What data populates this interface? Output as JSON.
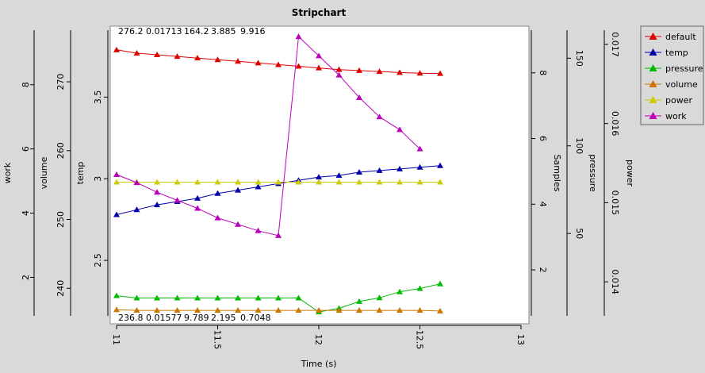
{
  "chart_data": {
    "type": "line",
    "title": "Stripchart",
    "xlabel": "Time (s)",
    "xlim": [
      11,
      13
    ],
    "x_ticks": [
      "11",
      "11.5",
      "12",
      "12.5",
      "13"
    ],
    "grid": false,
    "legend_position": "right",
    "colors": {
      "default": "#dd0000",
      "temp": "#0000aa",
      "pressure": "#00bb00",
      "volume": "#cc7700",
      "power": "#cccc00",
      "work": "#bb00bb"
    },
    "top_readout": [
      "276.2",
      "0.01713",
      "164.2",
      "3.885",
      "9.916"
    ],
    "bottom_readout": [
      "236.8",
      "0.01577",
      "9.789",
      "2.195",
      "0.7048"
    ],
    "axes": [
      {
        "key": "work",
        "label": "work",
        "side": "left",
        "range": [
          0.8,
          9.7
        ],
        "ticks": [
          "2",
          "4",
          "6",
          "8"
        ]
      },
      {
        "key": "volume",
        "label": "volume",
        "side": "left",
        "range": [
          236.0,
          277.5
        ],
        "ticks": [
          "240",
          "250",
          "260",
          "270"
        ]
      },
      {
        "key": "temp",
        "label": "temp",
        "side": "left",
        "range": [
          2.16,
          3.91
        ],
        "ticks": [
          "2.5",
          "3",
          "3.5"
        ]
      },
      {
        "key": "samples",
        "label": "Samples",
        "side": "right",
        "range": [
          0.6,
          9.3
        ],
        "ticks": [
          "2",
          "4",
          "6",
          "8"
        ]
      },
      {
        "key": "pressure",
        "label": "pressure",
        "side": "right",
        "range": [
          3.0,
          166.0
        ],
        "ticks": [
          "50",
          "100",
          "150"
        ]
      },
      {
        "key": "power",
        "label": "power",
        "side": "right",
        "range": [
          0.01357,
          0.01718
        ],
        "ticks": [
          "0.014",
          "0.015",
          "0.016",
          "0.017"
        ]
      }
    ],
    "x": [
      11.0,
      11.1,
      11.2,
      11.3,
      11.4,
      11.5,
      11.6,
      11.7,
      11.8,
      11.9,
      12.0,
      12.1,
      12.2,
      12.3,
      12.4,
      12.5,
      12.6
    ],
    "series": [
      {
        "name": "default",
        "axis": "samples",
        "values": [
          8.7,
          8.6,
          8.55,
          8.5,
          8.45,
          8.4,
          8.35,
          8.3,
          8.25,
          8.2,
          8.15,
          8.1,
          8.07,
          8.04,
          8.01,
          7.99,
          7.98
        ]
      },
      {
        "name": "temp",
        "axis": "temp",
        "values": [
          2.78,
          2.81,
          2.84,
          2.86,
          2.88,
          2.91,
          2.93,
          2.95,
          2.97,
          2.99,
          3.01,
          3.02,
          3.04,
          3.05,
          3.06,
          3.07,
          3.08
        ]
      },
      {
        "name": "pressure",
        "axis": "pressure",
        "values": [
          14.5,
          13.2,
          13.2,
          13.2,
          13.2,
          13.2,
          13.2,
          13.2,
          13.2,
          13.2,
          5.2,
          7.3,
          11.2,
          13.3,
          16.7,
          18.6,
          21.2
        ]
      },
      {
        "name": "volume",
        "axis": "volume",
        "values": [
          236.9,
          236.8,
          236.8,
          236.8,
          236.8,
          236.8,
          236.8,
          236.8,
          236.8,
          236.8,
          236.8,
          236.8,
          236.8,
          236.8,
          236.8,
          236.8,
          236.7
        ]
      },
      {
        "name": "power",
        "axis": "power",
        "values": [
          0.01526,
          0.01526,
          0.01526,
          0.01526,
          0.01526,
          0.01526,
          0.01526,
          0.01526,
          0.01526,
          0.01526,
          0.01526,
          0.01526,
          0.01526,
          0.01526,
          0.01526,
          0.01526,
          0.01526
        ]
      },
      {
        "name": "work",
        "axis": "work",
        "values": [
          5.2,
          4.95,
          4.65,
          4.4,
          4.15,
          3.85,
          3.65,
          3.45,
          3.3,
          9.5,
          8.9,
          8.3,
          7.6,
          7.0,
          6.6,
          6.0,
          null
        ]
      }
    ]
  }
}
